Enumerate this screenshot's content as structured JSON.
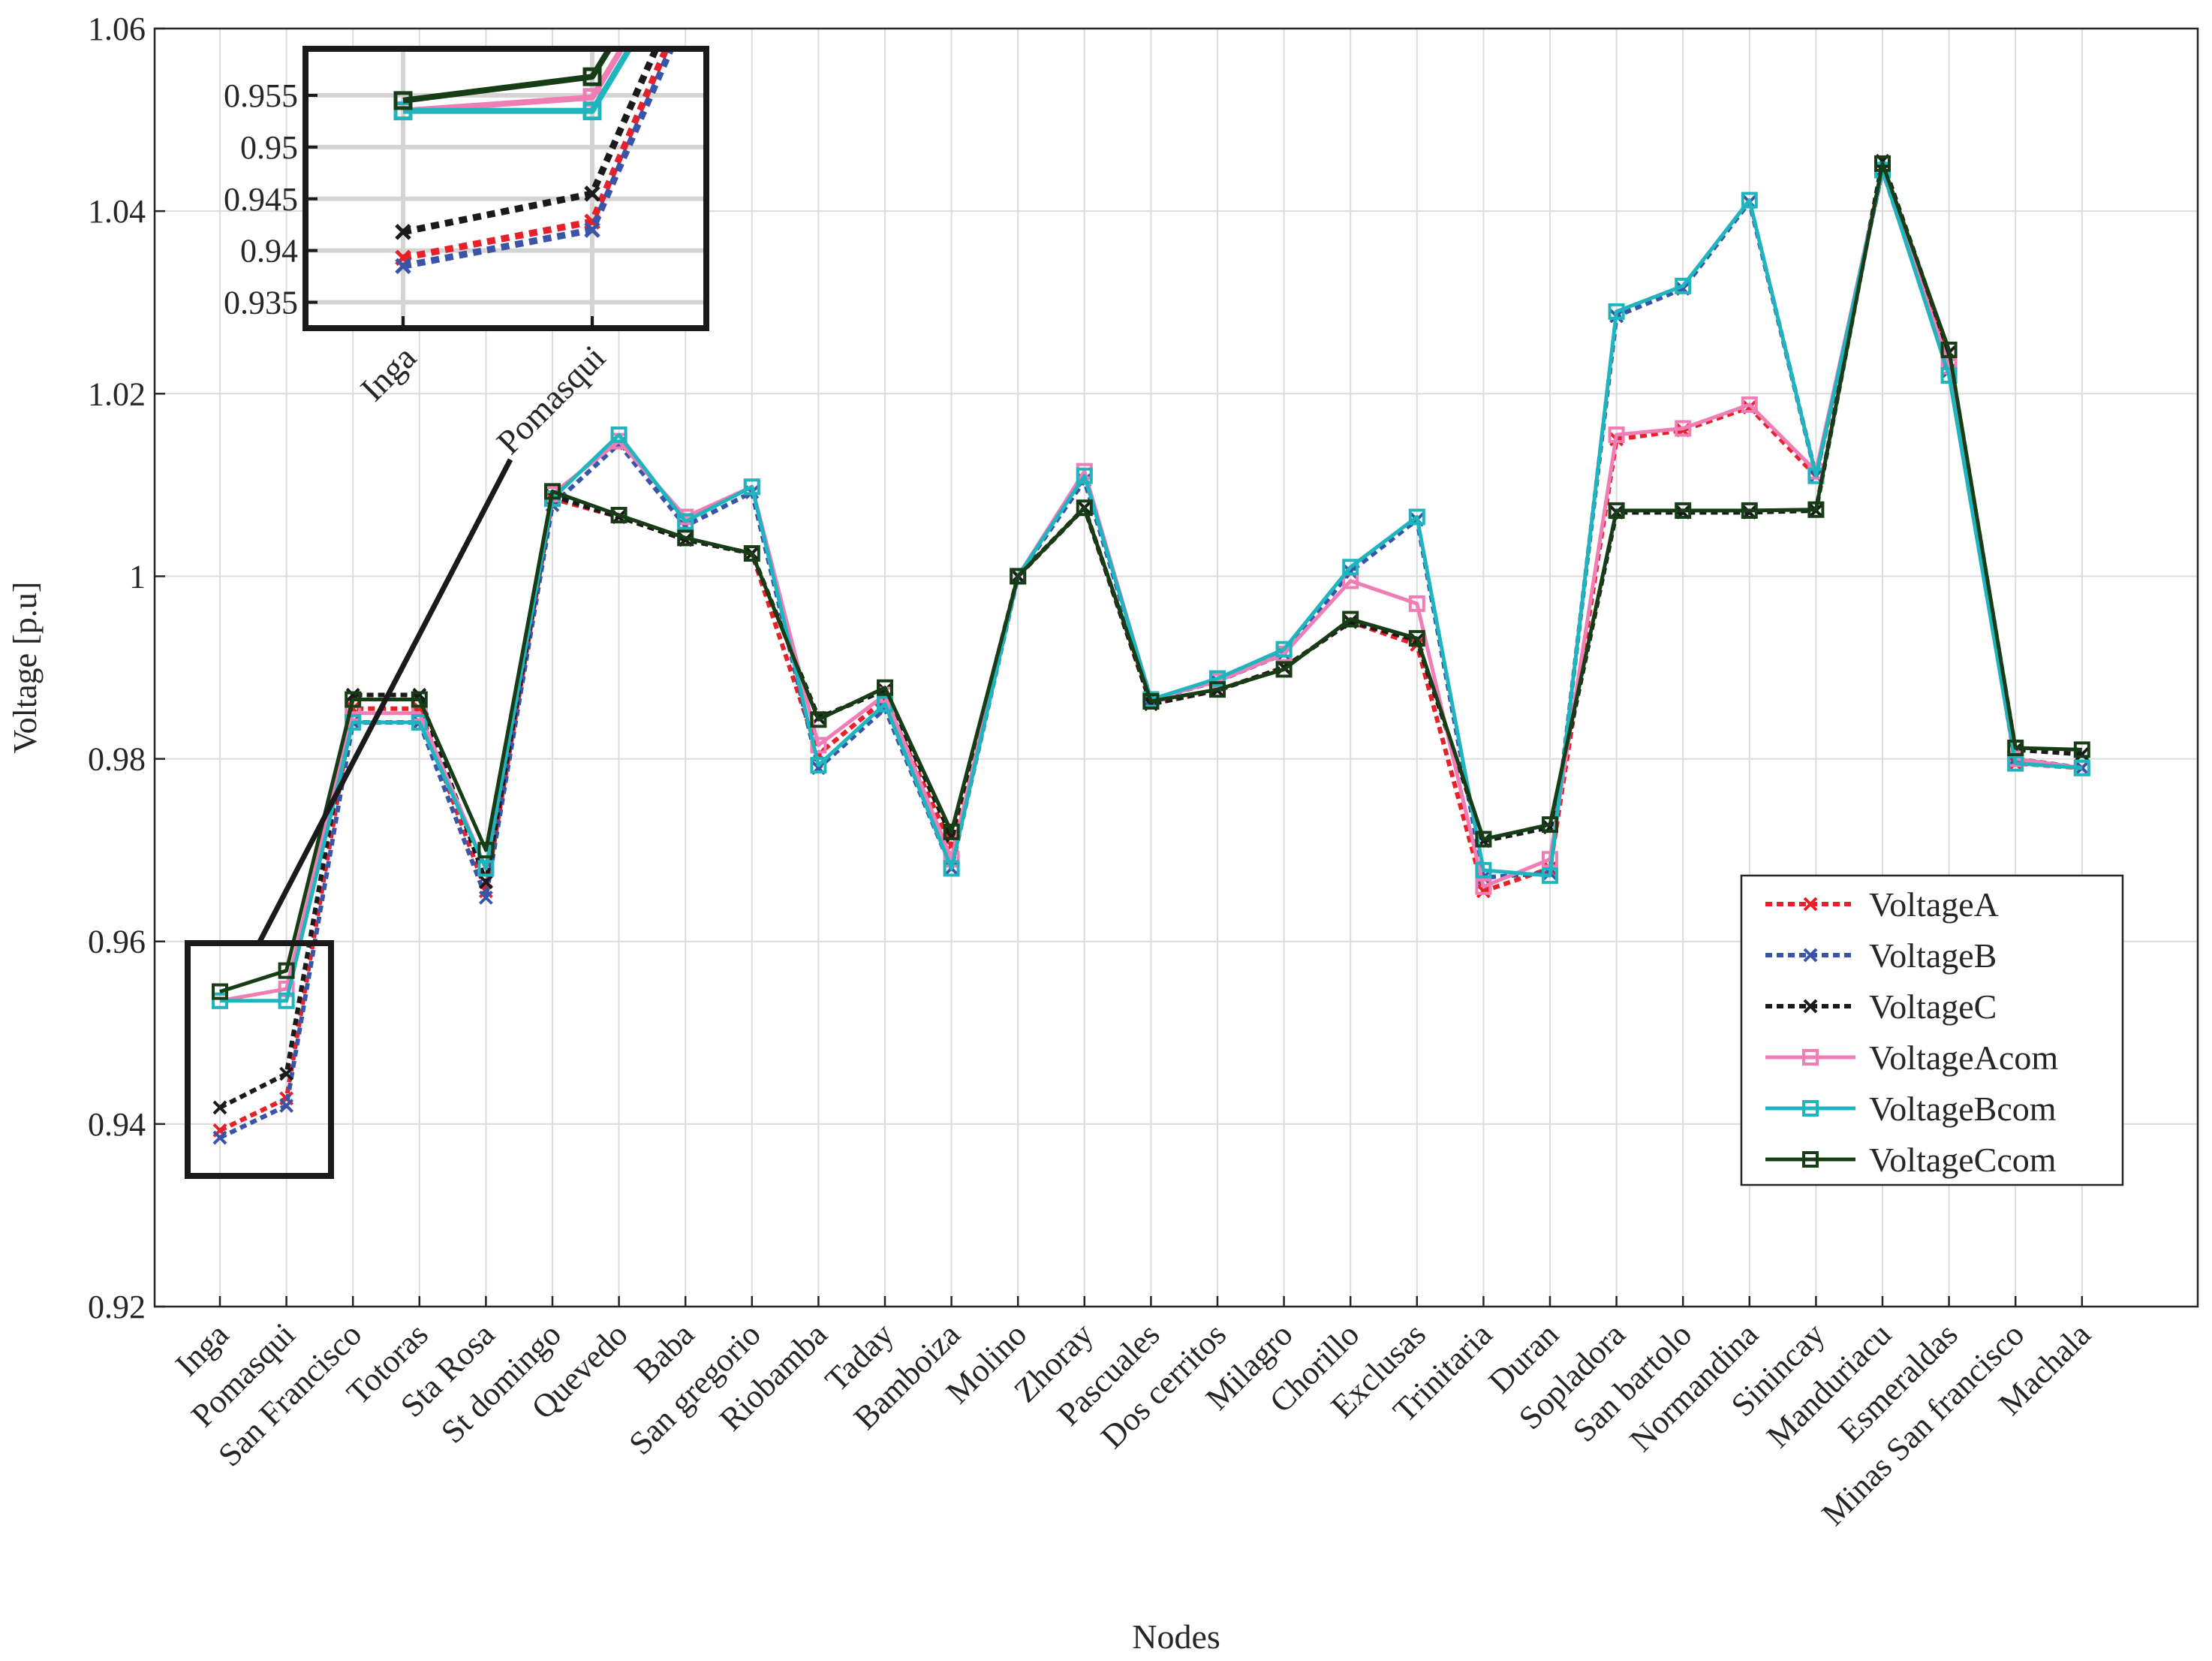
{
  "chart_data": {
    "type": "line",
    "xlabel": "Nodes",
    "ylabel": "Voltage [p.u]",
    "ylim": [
      0.92,
      1.06
    ],
    "yticks": [
      "0.92",
      "0.94",
      "0.96",
      "0.98",
      "1",
      "1.02",
      "1.04",
      "1.06"
    ],
    "grid": true,
    "legend_position": "right",
    "categories": [
      "Inga",
      "Pomasqui",
      "San Francisco",
      "Totoras",
      "Sta Rosa",
      "St domingo",
      "Quevedo",
      "Baba",
      "San gregorio",
      "Riobamba",
      "Taday",
      "Bamboiza",
      "Molino",
      "Zhoray",
      "Pascuales",
      "Dos cerritos",
      "Milagro",
      "Chorillo",
      "Exclusas",
      "Trinitaria",
      "Duran",
      "Sopladora",
      "San bartolo",
      "Normandina",
      "Sinincay",
      "Manduriacu",
      "Esmeraldas",
      "Minas San francisco",
      "Machala"
    ],
    "series": [
      {
        "name": "VoltageA",
        "color": "#e8202a",
        "dash": true,
        "marker": "x",
        "values": [
          0.9393,
          0.9428,
          0.9855,
          0.9855,
          0.9655,
          1.0085,
          1.0065,
          1.004,
          1.0025,
          0.9805,
          0.9865,
          0.9705,
          1.0,
          1.0075,
          0.986,
          0.9875,
          0.99,
          0.995,
          0.9925,
          0.9655,
          0.968,
          1.015,
          1.016,
          1.0185,
          1.011,
          1.0445,
          1.0235,
          0.9795,
          0.979
        ]
      },
      {
        "name": "VoltageB",
        "color": "#3a55a8",
        "dash": true,
        "marker": "x",
        "values": [
          0.9385,
          0.942,
          0.984,
          0.984,
          0.9648,
          1.0078,
          1.0145,
          1.0055,
          1.0092,
          0.979,
          0.9855,
          0.968,
          1.0,
          1.0105,
          0.9865,
          0.9885,
          0.9915,
          1.0005,
          1.0062,
          0.967,
          0.9675,
          1.0285,
          1.0315,
          1.041,
          1.011,
          1.0445,
          1.0225,
          0.98,
          0.979
        ]
      },
      {
        "name": "VoltageC",
        "color": "#1a1a1a",
        "dash": true,
        "marker": "x",
        "values": [
          0.9418,
          0.9455,
          0.987,
          0.987,
          0.9665,
          1.0088,
          1.0065,
          1.004,
          1.0025,
          0.9845,
          0.9875,
          0.9715,
          1.0,
          1.0075,
          0.986,
          0.9875,
          0.99,
          0.995,
          0.993,
          0.971,
          0.9725,
          1.007,
          1.007,
          1.007,
          1.0072,
          1.0455,
          1.0245,
          0.981,
          0.9805
        ]
      },
      {
        "name": "VoltageAcom",
        "color": "#f07eb4",
        "dash": false,
        "marker": "s",
        "values": [
          0.9535,
          0.9548,
          0.985,
          0.985,
          0.968,
          1.009,
          1.0148,
          1.0065,
          1.0098,
          0.9815,
          0.987,
          0.969,
          1.0,
          1.0115,
          0.9865,
          0.9885,
          0.9915,
          0.9995,
          0.997,
          0.966,
          0.969,
          1.0155,
          1.0162,
          1.0188,
          1.0115,
          1.0445,
          1.023,
          0.98,
          0.979
        ]
      },
      {
        "name": "VoltageBcom",
        "color": "#1fb5bf",
        "dash": false,
        "marker": "s",
        "values": [
          0.9535,
          0.9535,
          0.984,
          0.984,
          0.968,
          1.0085,
          1.0155,
          1.006,
          1.0098,
          0.9793,
          0.986,
          0.968,
          1.0,
          1.011,
          0.9865,
          0.9888,
          0.992,
          1.001,
          1.0065,
          0.9678,
          0.9672,
          1.029,
          1.0318,
          1.0412,
          1.011,
          1.0445,
          1.022,
          0.9795,
          0.979
        ]
      },
      {
        "name": "VoltageCcom",
        "color": "#163d16",
        "dash": false,
        "marker": "s",
        "values": [
          0.9545,
          0.9568,
          0.9865,
          0.9865,
          0.97,
          1.0093,
          1.0067,
          1.0042,
          1.0025,
          0.9843,
          0.9878,
          0.972,
          1.0,
          1.0075,
          0.9863,
          0.9876,
          0.9898,
          0.9953,
          0.9932,
          0.9712,
          0.9728,
          1.0072,
          1.0072,
          1.0072,
          1.0073,
          1.0452,
          1.0248,
          0.9812,
          0.981
        ]
      }
    ],
    "inset": {
      "categories": [
        "Inga",
        "Pomasqui"
      ],
      "yticks": [
        "0.935",
        "0.94",
        "0.945",
        "0.95",
        "0.955"
      ],
      "ylim": [
        0.9325,
        0.9595
      ]
    }
  }
}
